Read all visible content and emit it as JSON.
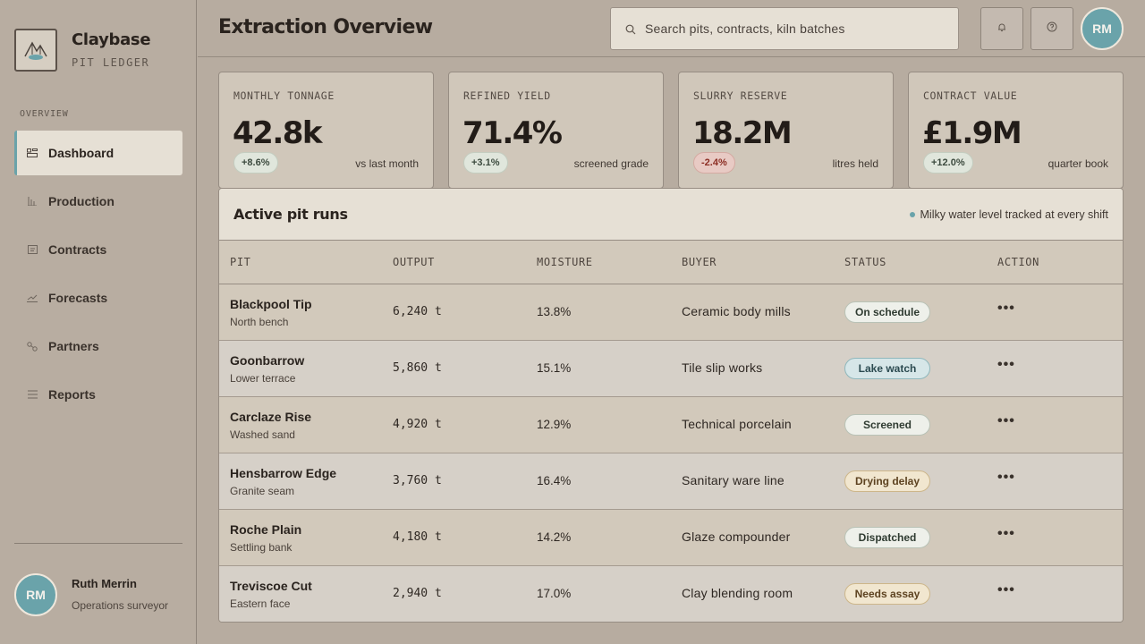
{
  "brand": {
    "name": "Claybase",
    "subtitle": "PIT LEDGER"
  },
  "nav": {
    "section_label": "OVERVIEW",
    "items": [
      {
        "label": "Dashboard",
        "icon": "grid-icon",
        "active": true
      },
      {
        "label": "Production",
        "icon": "bar-chart-icon"
      },
      {
        "label": "Contracts",
        "icon": "document-icon"
      },
      {
        "label": "Forecasts",
        "icon": "line-chart-icon"
      },
      {
        "label": "Partners",
        "icon": "nodes-icon"
      },
      {
        "label": "Reports",
        "icon": "list-icon"
      }
    ]
  },
  "user": {
    "initials": "RM",
    "name": "Ruth Merrin",
    "role": "Operations surveyor"
  },
  "header": {
    "title": "Extraction Overview",
    "search_placeholder": "Search pits, contracts, kiln batches",
    "icons": [
      "bell-icon",
      "help-icon"
    ]
  },
  "kpis": [
    {
      "label": "MONTHLY TONNAGE",
      "value": "42.8k",
      "delta": "+8.6%",
      "trend": "up",
      "note": "vs last month"
    },
    {
      "label": "REFINED YIELD",
      "value": "71.4%",
      "delta": "+3.1%",
      "trend": "up",
      "note": "screened grade"
    },
    {
      "label": "SLURRY RESERVE",
      "value": "18.2M",
      "delta": "-2.4%",
      "trend": "down",
      "note": "litres held"
    },
    {
      "label": "CONTRACT VALUE",
      "value": "£1.9M",
      "delta": "+12.0%",
      "trend": "up",
      "note": "quarter book"
    }
  ],
  "table": {
    "title": "Active pit runs",
    "note": "Milky water level tracked at every shift",
    "columns": [
      "PIT",
      "OUTPUT",
      "MOISTURE",
      "BUYER",
      "STATUS",
      "ACTION"
    ],
    "rows": [
      {
        "pit": "Blackpool Tip",
        "area": "North bench",
        "output": "6,240 t",
        "moisture": "13.8%",
        "buyer": "Ceramic body mills",
        "status": "On schedule",
        "action": "•••"
      },
      {
        "pit": "Goonbarrow",
        "area": "Lower terrace",
        "output": "5,860 t",
        "moisture": "15.1%",
        "buyer": "Tile slip works",
        "status": "Lake watch",
        "action": "•••"
      },
      {
        "pit": "Carclaze Rise",
        "area": "Washed sand",
        "output": "4,920 t",
        "moisture": "12.9%",
        "buyer": "Technical porcelain",
        "status": "Screened",
        "action": "•••"
      },
      {
        "pit": "Hensbarrow Edge",
        "area": "Granite seam",
        "output": "3,760 t",
        "moisture": "16.4%",
        "buyer": "Sanitary ware line",
        "status": "Drying delay",
        "action": "•••"
      },
      {
        "pit": "Roche Plain",
        "area": "Settling bank",
        "output": "4,180 t",
        "moisture": "14.2%",
        "buyer": "Glaze compounder",
        "status": "Dispatched",
        "action": "•••"
      },
      {
        "pit": "Treviscoe Cut",
        "area": "Eastern face",
        "output": "2,940 t",
        "moisture": "17.0%",
        "buyer": "Clay blending room",
        "status": "Needs assay",
        "action": "•••"
      }
    ]
  },
  "colors": {
    "accent": "#6aa3aa",
    "background": "#b7aca0",
    "card": "#d0c7ba",
    "negative": "#8c2e24"
  }
}
